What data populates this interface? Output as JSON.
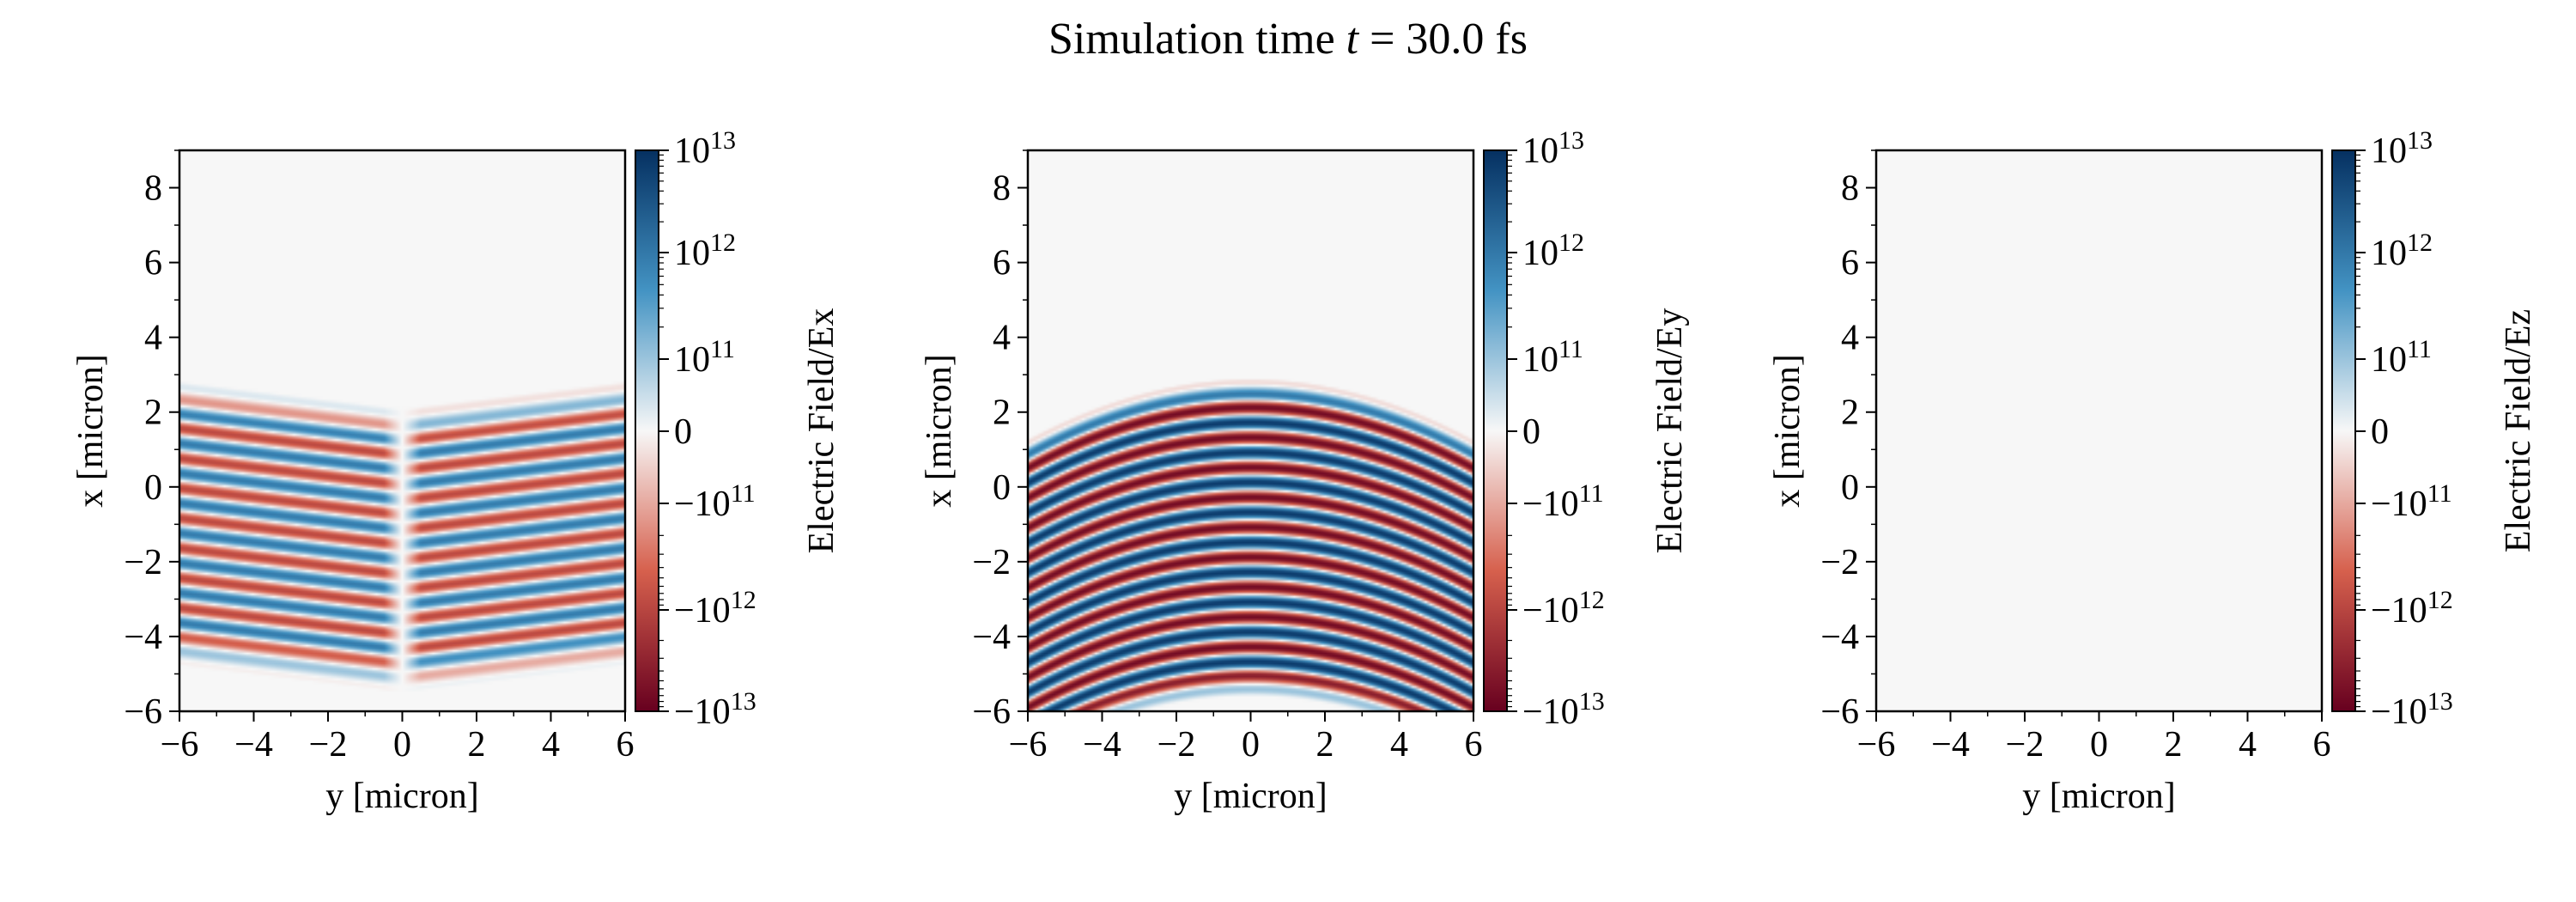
{
  "figure_title_prefix": "Simulation time",
  "figure_title_var": "t",
  "figure_title_eq": " = 30.0 fs",
  "colors": {
    "colormap": "RdBu",
    "neg_max": "#67001f",
    "neg_mid": "#d6604d",
    "zero": "#f7f7f7",
    "pos_mid": "#4393c3",
    "pos_max": "#053061",
    "background": "#f5f5f5"
  },
  "chart_data": [
    {
      "type": "heatmap",
      "field": "Ex",
      "xlabel": "y [micron]",
      "ylabel": "x [micron]",
      "colorbar_label": "Electric Field/Ex",
      "xlim": [
        -6,
        6
      ],
      "ylim": [
        -6,
        9
      ],
      "xticks": [
        -6,
        -4,
        -2,
        0,
        2,
        4,
        6
      ],
      "yticks": [
        -6,
        -4,
        -2,
        0,
        2,
        4,
        6,
        8
      ],
      "colorbar_scale": "symlog",
      "colorbar_ticks": [
        "10^13",
        "10^12",
        "10^11",
        "0",
        "-10^11",
        "-10^12",
        "-10^13"
      ],
      "pattern": {
        "description": "antisymmetric banded field, zero along y=0, fringes tilt outward",
        "x_range": [
          -5.5,
          2.1
        ],
        "wavelength": 0.8,
        "peak_amplitude": "~1e12",
        "antisymmetric_in_y": true
      }
    },
    {
      "type": "heatmap",
      "field": "Ey",
      "xlabel": "y [micron]",
      "ylabel": "x [micron]",
      "colorbar_label": "Electric Field/Ey",
      "xlim": [
        -6,
        6
      ],
      "ylim": [
        -6,
        9
      ],
      "xticks": [
        -6,
        -4,
        -2,
        0,
        2,
        4,
        6
      ],
      "yticks": [
        -6,
        -4,
        -2,
        0,
        2,
        4,
        6,
        8
      ],
      "colorbar_scale": "symlog",
      "colorbar_ticks": [
        "10^13",
        "10^12",
        "10^11",
        "0",
        "-10^11",
        "-10^12",
        "-10^13"
      ],
      "pattern": {
        "description": "strong horizontal bands with curved wavefronts",
        "x_range": [
          -5.6,
          2.9
        ],
        "wavelength": 0.8,
        "peak_amplitude": "~1e13",
        "antisymmetric_in_y": false
      }
    },
    {
      "type": "heatmap",
      "field": "Ez",
      "xlabel": "y [micron]",
      "ylabel": "x [micron]",
      "colorbar_label": "Electric Field/Ez",
      "xlim": [
        -6,
        6
      ],
      "ylim": [
        -6,
        9
      ],
      "xticks": [
        -6,
        -4,
        -2,
        0,
        2,
        4,
        6
      ],
      "yticks": [
        -6,
        -4,
        -2,
        0,
        2,
        4,
        6,
        8
      ],
      "colorbar_scale": "symlog",
      "colorbar_ticks": [
        "10^13",
        "10^12",
        "10^11",
        "0",
        "-10^11",
        "-10^12",
        "-10^13"
      ],
      "pattern": {
        "description": "field is zero everywhere",
        "x_range": null,
        "wavelength": null,
        "peak_amplitude": "0",
        "antisymmetric_in_y": false
      }
    }
  ]
}
